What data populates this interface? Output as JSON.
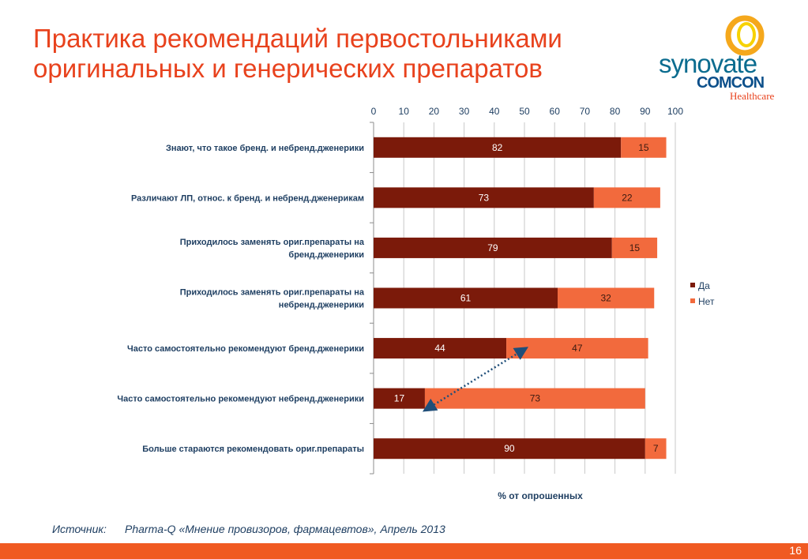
{
  "slide": {
    "title_line1": "Практика рекомендаций первостольниками",
    "title_line2": "оригинальных и генерических препаратов",
    "source_label": "Источник:",
    "source_text": "Pharma-Q «Мнение провизоров, фармацевтов», Апрель 2013",
    "page_number": "16"
  },
  "logo": {
    "word1": "synovate",
    "word2": "COMCON",
    "word3": "Healthcare",
    "ring_color": "#f5a81c",
    "ring_inner_color": "#f7d200"
  },
  "colors": {
    "da": "#7b1a0a",
    "net": "#f26a3d",
    "axis_text": "#1f3f62",
    "title": "#e8421d",
    "arrow": "#1f4e79",
    "footer": "#f05a22"
  },
  "chart_data": {
    "type": "bar",
    "orientation": "horizontal",
    "stacked": true,
    "xlabel": "% от опрошенных",
    "xlim": [
      0,
      100
    ],
    "x_ticks": [
      "0",
      "10",
      "20",
      "30",
      "40",
      "50",
      "60",
      "70",
      "80",
      "90",
      "100"
    ],
    "x_axis_position": "top",
    "grid": true,
    "legend_position": "right",
    "categories": [
      [
        "Знают, что такое бренд. и небренд.дженерики"
      ],
      [
        "Различают ЛП, относ. к бренд. и небренд.дженерикам"
      ],
      [
        "Приходилось заменять ориг.препараты на",
        "бренд.дженерики"
      ],
      [
        "Приходилось заменять ориг.препараты на",
        "небренд.дженерики"
      ],
      [
        "Часто самостоятельно рекомендуют бренд.дженерики"
      ],
      [
        "Часто самостоятельно рекомендуют небренд.дженерики"
      ],
      [
        "Больше стараются рекомендовать ориг.препараты"
      ]
    ],
    "series": [
      {
        "name": "Да",
        "values": [
          82,
          73,
          79,
          61,
          44,
          17,
          90
        ]
      },
      {
        "name": "Нет",
        "values": [
          15,
          22,
          15,
          32,
          47,
          73,
          7
        ]
      }
    ],
    "annotations": [
      {
        "type": "double-arrow-dotted",
        "from": {
          "category": 4,
          "x": 50
        },
        "to": {
          "category": 5,
          "x": 17
        }
      }
    ]
  }
}
